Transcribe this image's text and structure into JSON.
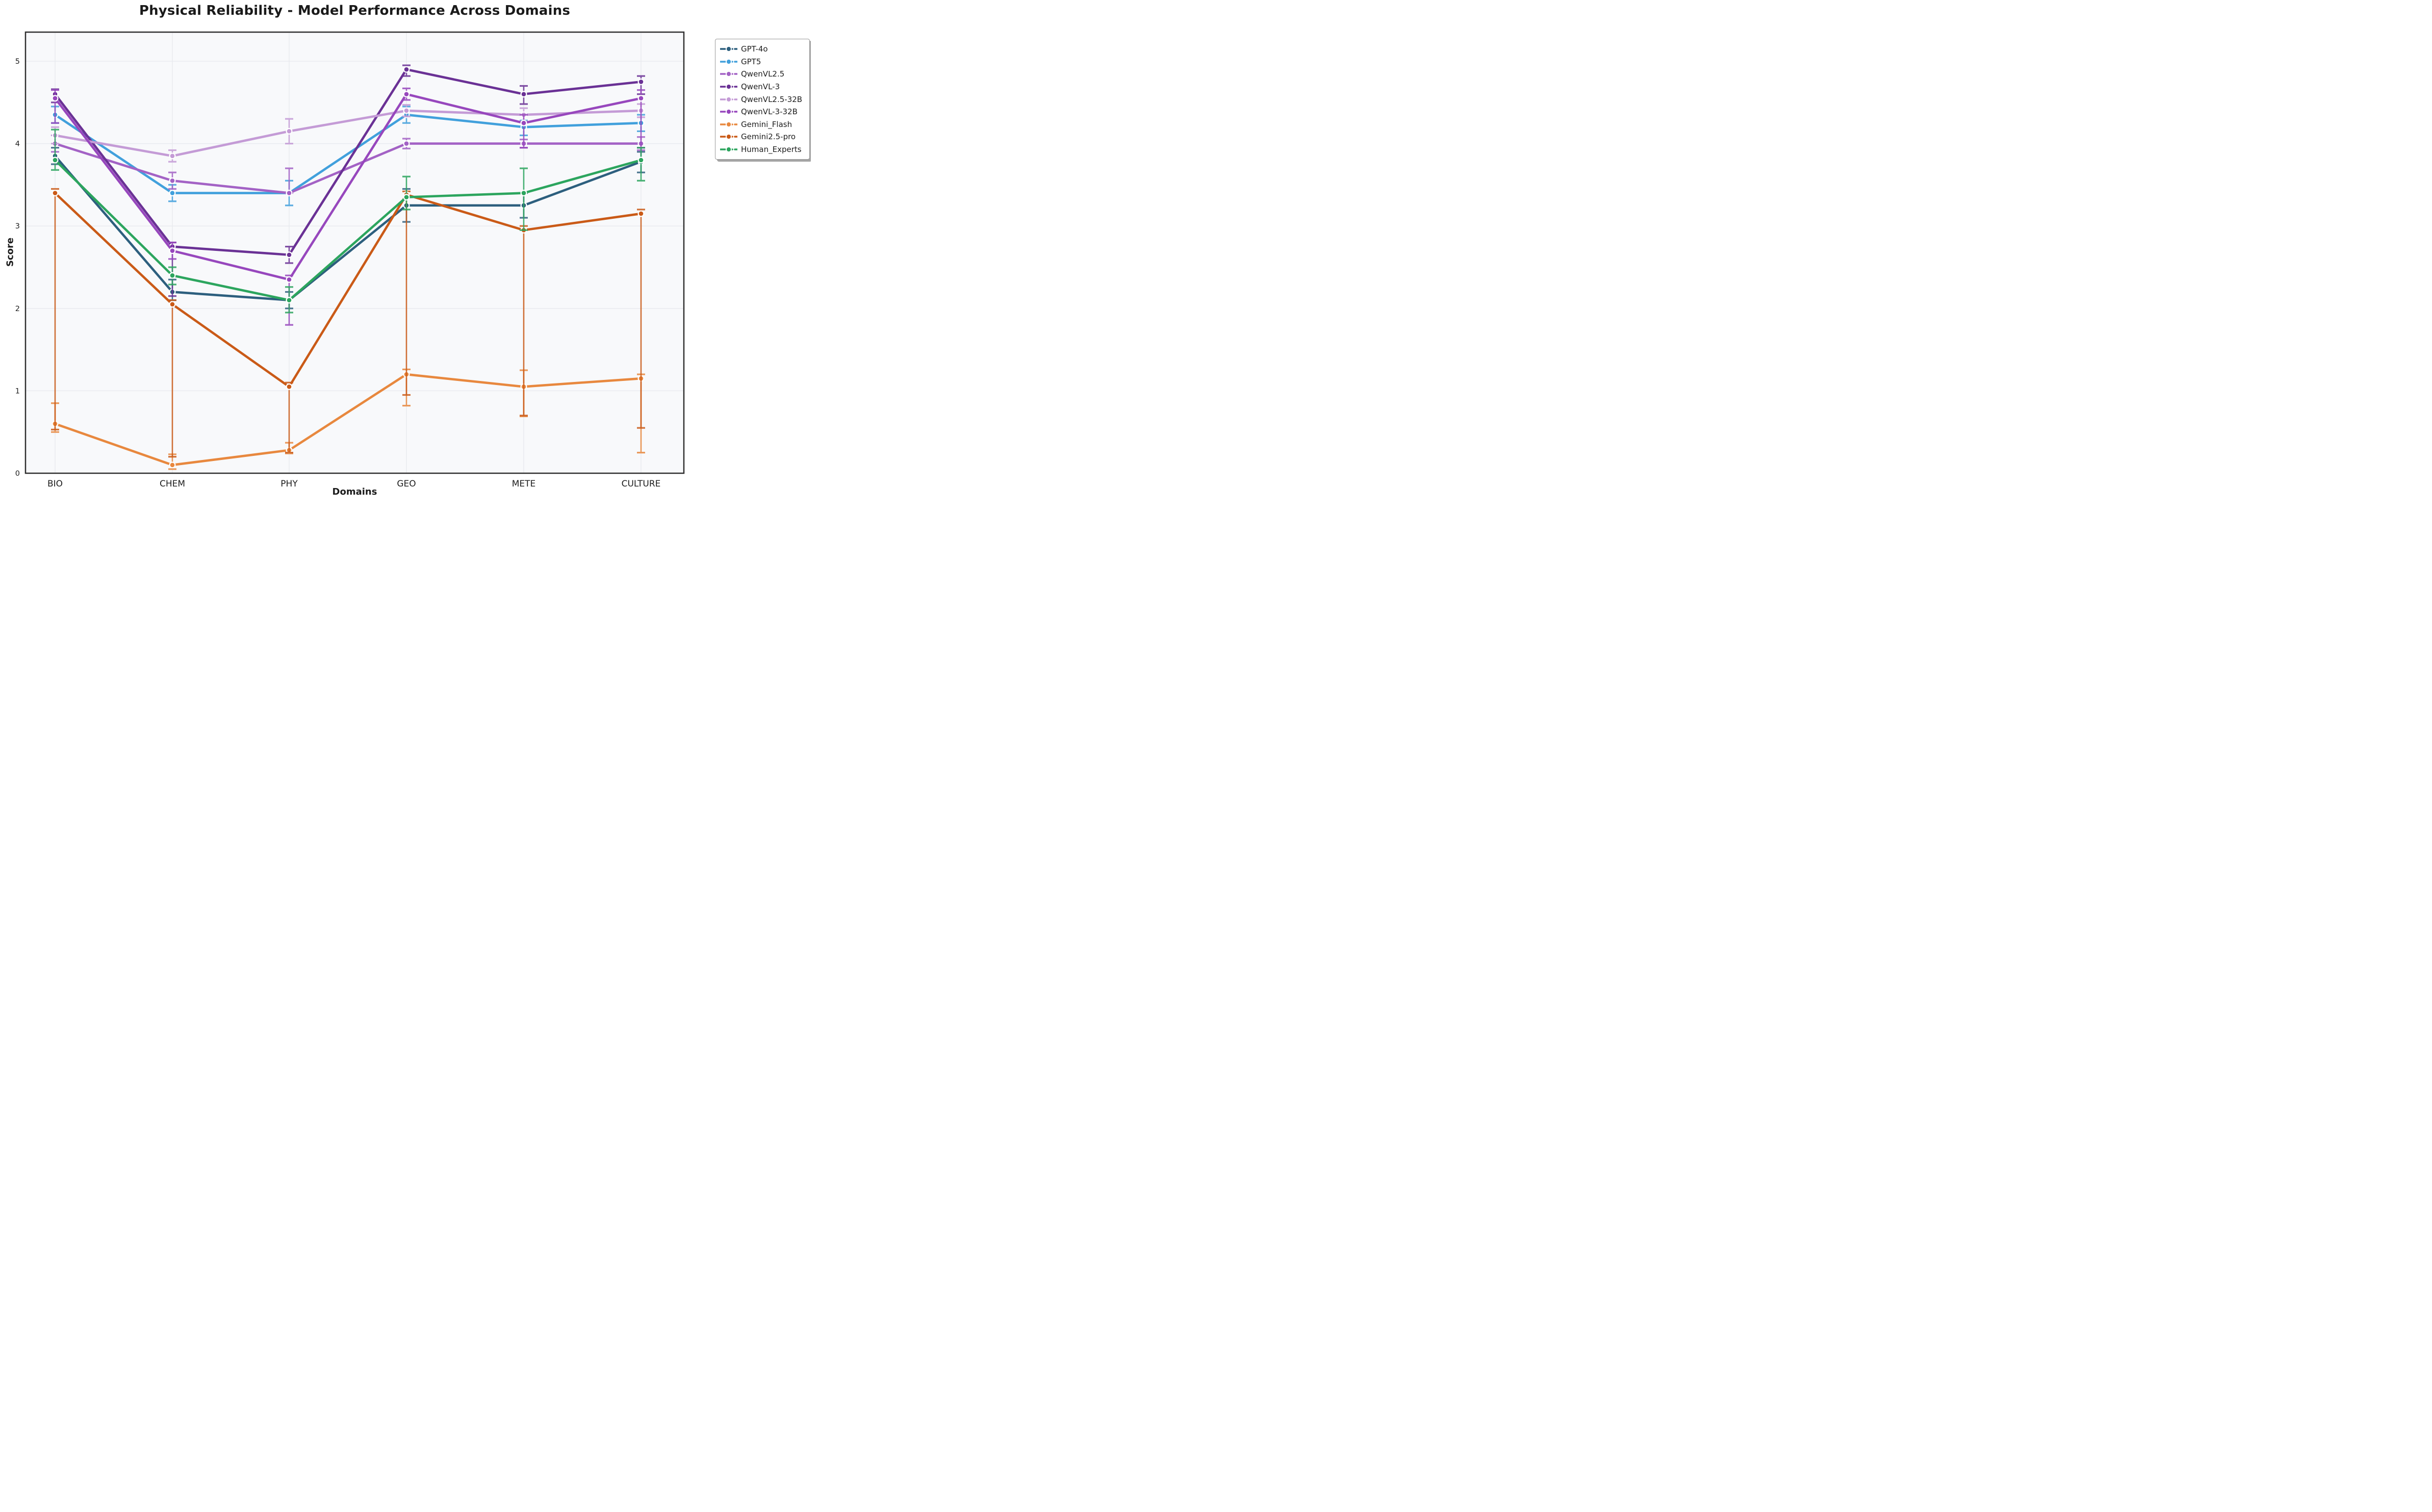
{
  "title": "Physical Reliability - Model Performance Across Domains",
  "chart_data": {
    "type": "line",
    "title": "Physical Reliability - Model Performance Across Domains",
    "xlabel": "Domains",
    "ylabel": "Score",
    "categories": [
      "BIO",
      "CHEM",
      "PHY",
      "GEO",
      "METE",
      "CULTURE"
    ],
    "yticks": [
      0,
      1,
      2,
      3,
      4,
      5
    ],
    "ylim": [
      0,
      5.35
    ],
    "grid": true,
    "legend_position": "outside upper right",
    "plot_bg": "#f8f9fb",
    "grid_color": "#e7e9ee",
    "spine_color": "#2f2f2f",
    "series": [
      {
        "name": "GPT-4o",
        "color": "#2d5f7e",
        "values": [
          3.85,
          2.2,
          2.1,
          3.25,
          3.25,
          3.78
        ],
        "err_lo": [
          3.75,
          2.1,
          2.0,
          3.05,
          3.1,
          3.65
        ],
        "err_hi": [
          3.95,
          2.35,
          2.2,
          3.45,
          3.4,
          3.9
        ]
      },
      {
        "name": "GPT5",
        "color": "#41a0dc",
        "values": [
          4.35,
          3.4,
          3.4,
          4.35,
          4.2,
          4.25
        ],
        "err_lo": [
          4.25,
          3.3,
          3.25,
          4.25,
          4.1,
          4.15
        ],
        "err_hi": [
          4.45,
          3.5,
          3.55,
          4.45,
          4.28,
          4.35
        ]
      },
      {
        "name": "QwenVL2.5",
        "color": "#a362c5",
        "values": [
          4.0,
          3.55,
          3.4,
          4.0,
          4.0,
          4.0
        ],
        "err_lo": [
          3.9,
          3.45,
          3.4,
          3.94,
          3.95,
          3.92
        ],
        "err_hi": [
          4.1,
          3.65,
          3.7,
          4.06,
          4.05,
          4.08
        ]
      },
      {
        "name": "QwenVL-3",
        "color": "#6a3195",
        "values": [
          4.6,
          2.75,
          2.65,
          4.9,
          4.6,
          4.75
        ],
        "err_lo": [
          4.5,
          2.15,
          2.55,
          4.82,
          4.48,
          4.6
        ],
        "err_hi": [
          4.66,
          2.8,
          2.75,
          4.95,
          4.7,
          4.82
        ]
      },
      {
        "name": "QwenVL2.5-32B",
        "color": "#c49bd6",
        "values": [
          4.1,
          3.85,
          4.15,
          4.4,
          4.35,
          4.4
        ],
        "err_lo": [
          4.0,
          3.78,
          4.0,
          4.33,
          4.27,
          4.32
        ],
        "err_hi": [
          4.2,
          3.92,
          4.3,
          4.47,
          4.43,
          4.48
        ]
      },
      {
        "name": "QwenVL-3-32B",
        "color": "#9747bd",
        "values": [
          4.55,
          2.7,
          2.35,
          4.6,
          4.25,
          4.55
        ],
        "err_lo": [
          4.25,
          2.6,
          1.8,
          4.53,
          3.95,
          3.95
        ],
        "err_hi": [
          4.65,
          2.8,
          2.4,
          4.67,
          4.35,
          4.65
        ]
      },
      {
        "name": "Gemini_Flash",
        "color": "#e8883e",
        "values": [
          0.6,
          0.1,
          0.28,
          1.2,
          1.05,
          1.15
        ],
        "err_lo": [
          0.5,
          0.05,
          0.24,
          0.82,
          0.69,
          0.25
        ],
        "err_hi": [
          0.85,
          0.23,
          0.37,
          1.26,
          1.25,
          1.2
        ]
      },
      {
        "name": "Gemini2.5-pro",
        "color": "#ca5a17",
        "values": [
          3.4,
          2.05,
          1.05,
          3.38,
          2.95,
          3.15
        ],
        "err_lo": [
          0.53,
          0.2,
          0.25,
          0.95,
          0.7,
          0.55
        ],
        "err_hi": [
          3.45,
          2.1,
          1.1,
          3.42,
          3.0,
          3.2
        ]
      },
      {
        "name": "Human_Experts",
        "color": "#2ca55e",
        "values": [
          3.8,
          2.4,
          2.1,
          3.35,
          3.4,
          3.8
        ],
        "err_lo": [
          3.68,
          2.29,
          1.95,
          3.2,
          2.95,
          3.55
        ],
        "err_hi": [
          4.17,
          2.5,
          2.26,
          3.6,
          3.7,
          3.95
        ]
      }
    ]
  }
}
